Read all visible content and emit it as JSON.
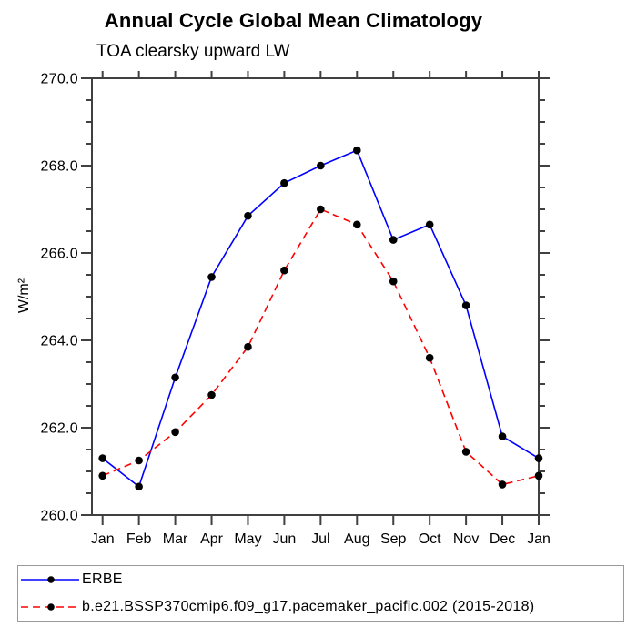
{
  "title": "Annual Cycle Global Mean Climatology",
  "subtitle": "TOA clearsky upward LW",
  "ylabel": "W/m²",
  "legend": {
    "entries": [
      {
        "label": "ERBE",
        "color": "#0000ff",
        "style": "solid",
        "marker_color": "#000000"
      },
      {
        "label": "b.e21.BSSP370cmip6.f09_g17.pacemaker_pacific.002 (2015-2018)",
        "color": "#ff0000",
        "style": "dashed",
        "marker_color": "#000000"
      }
    ]
  },
  "colors": {
    "axis": "#404040",
    "text": "#000000",
    "legend_border": "#9a9a9a",
    "background": "#ffffff",
    "erbe_line": "#0000ff",
    "model_line": "#ff0000",
    "marker": "#000000"
  },
  "chart_data": {
    "type": "line",
    "title": "Annual Cycle Global Mean Climatology",
    "subtitle": "TOA clearsky upward LW",
    "ylabel": "W/m²",
    "xlabel": "",
    "categories": [
      "Jan",
      "Feb",
      "Mar",
      "Apr",
      "May",
      "Jun",
      "Jul",
      "Aug",
      "Sep",
      "Oct",
      "Nov",
      "Dec",
      "Jan"
    ],
    "series": [
      {
        "name": "ERBE",
        "color": "#0000ff",
        "line_style": "solid",
        "marker": "circle",
        "marker_color": "#000000",
        "values": [
          261.3,
          260.65,
          263.15,
          265.45,
          266.85,
          267.6,
          268.0,
          268.35,
          266.3,
          266.65,
          264.8,
          261.8,
          261.3
        ]
      },
      {
        "name": "b.e21.BSSP370cmip6.f09_g17.pacemaker_pacific.002 (2015-2018)",
        "color": "#ff0000",
        "line_style": "dashed",
        "marker": "circle",
        "marker_color": "#000000",
        "values": [
          260.9,
          261.25,
          261.9,
          262.75,
          263.85,
          265.6,
          267.0,
          266.65,
          265.35,
          263.6,
          261.45,
          260.7,
          260.9
        ]
      }
    ],
    "ylim": [
      260.0,
      270.0
    ],
    "ytick_major": 2.0,
    "ytick_minor": 0.5,
    "ytick_label_format": "one_decimal",
    "grid": false,
    "legend_position": "bottom"
  }
}
